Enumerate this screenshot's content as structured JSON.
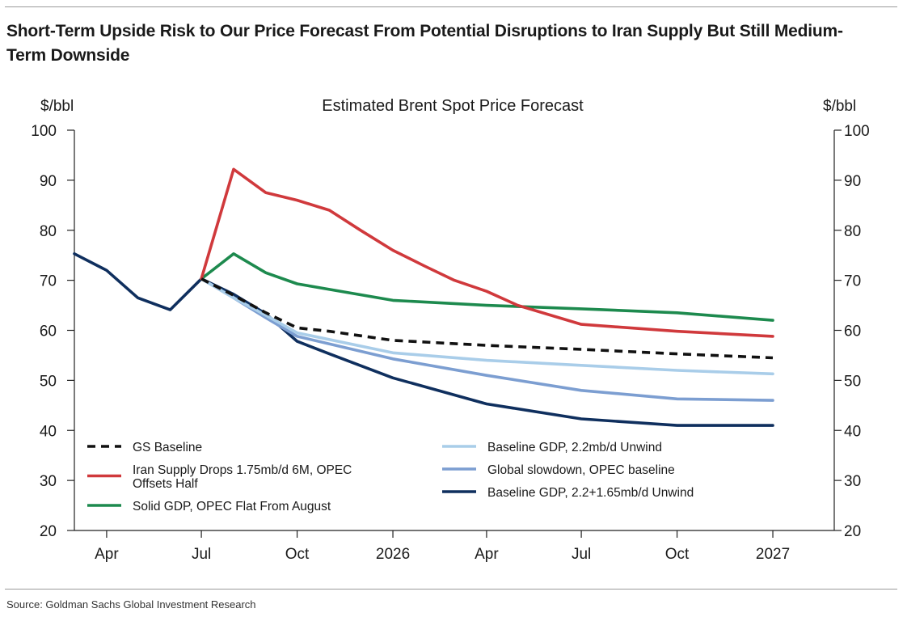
{
  "headline": "Short-Term Upside Risk to Our Price Forecast From Potential Disruptions to Iran Supply But Still Medium-Term Downside",
  "source": "Source: Goldman Sachs Global Investment Research",
  "chart_data": {
    "type": "line",
    "title": "Estimated Brent Spot Price Forecast",
    "ylabel_left": "$/bbl",
    "ylabel_right": "$/bbl",
    "ylim": [
      20,
      100
    ],
    "yticks": [
      20,
      30,
      40,
      50,
      60,
      70,
      80,
      90,
      100
    ],
    "xlim": [
      "2025-03-01",
      "2027-03-01"
    ],
    "xticks": [
      {
        "date": "2025-04-01",
        "label": "Apr"
      },
      {
        "date": "2025-07-01",
        "label": "Jul"
      },
      {
        "date": "2025-10-01",
        "label": "Oct"
      },
      {
        "date": "2026-01-01",
        "label": "2026"
      },
      {
        "date": "2026-04-01",
        "label": "Apr"
      },
      {
        "date": "2026-07-01",
        "label": "Jul"
      },
      {
        "date": "2026-10-01",
        "label": "Oct"
      },
      {
        "date": "2027-01-01",
        "label": "2027"
      }
    ],
    "grid": false,
    "series": [
      {
        "name": "GS Baseline",
        "color": "#111111",
        "dash": true,
        "x": [
          "2025-07-01",
          "2025-08-01",
          "2025-09-01",
          "2025-10-01",
          "2025-11-01",
          "2026-01-01",
          "2026-04-01",
          "2026-07-01",
          "2026-10-01",
          "2027-01-01"
        ],
        "y": [
          70.3,
          67,
          63.5,
          60.5,
          59.8,
          58,
          57,
          56.2,
          55.3,
          54.5
        ]
      },
      {
        "name": "Iran Supply Drops 1.75mb/d 6M, OPEC Offsets Half",
        "color": "#d0393c",
        "x": [
          "2025-07-01",
          "2025-08-01",
          "2025-09-01",
          "2025-10-01",
          "2025-11-01",
          "2025-12-01",
          "2026-01-01",
          "2026-02-01",
          "2026-03-01",
          "2026-04-01",
          "2026-05-01",
          "2026-07-01",
          "2026-10-01",
          "2027-01-01"
        ],
        "y": [
          70.3,
          92.2,
          87.5,
          86,
          84,
          80,
          76,
          72.8,
          70,
          67.8,
          65,
          61.2,
          59.8,
          58.8
        ]
      },
      {
        "name": "Solid GDP, OPEC Flat From August",
        "color": "#1d8a4e",
        "x": [
          "2025-07-01",
          "2025-08-01",
          "2025-09-01",
          "2025-10-01",
          "2026-01-01",
          "2026-04-01",
          "2026-07-01",
          "2026-10-01",
          "2027-01-01"
        ],
        "y": [
          70.3,
          75.3,
          71.5,
          69.3,
          66,
          65,
          64.3,
          63.5,
          62
        ]
      },
      {
        "name": "Baseline GDP, 2.2mb/d Unwind",
        "color": "#a9cde9",
        "x": [
          "2025-07-01",
          "2025-08-01",
          "2025-09-01",
          "2025-10-01",
          "2026-01-01",
          "2026-04-01",
          "2026-07-01",
          "2026-10-01",
          "2027-01-01"
        ],
        "y": [
          70.3,
          66.5,
          63,
          59.5,
          55.5,
          54,
          53,
          52,
          51.3
        ]
      },
      {
        "name": "Global slowdown, OPEC baseline",
        "color": "#7c9ed1",
        "x": [
          "2025-07-01",
          "2025-08-01",
          "2025-09-01",
          "2025-10-01",
          "2026-01-01",
          "2026-04-01",
          "2026-07-01",
          "2026-10-01",
          "2027-01-01"
        ],
        "y": [
          70.3,
          66.5,
          62.5,
          58.8,
          54.3,
          51,
          48,
          46.3,
          46
        ]
      },
      {
        "name": "Baseline GDP, 2.2+1.65mb/d Unwind",
        "color": "#0f2f5e",
        "x": [
          "2025-03-01",
          "2025-04-01",
          "2025-05-01",
          "2025-06-01",
          "2025-07-01",
          "2025-08-01",
          "2025-09-01",
          "2025-10-01",
          "2025-11-01",
          "2026-01-01",
          "2026-04-01",
          "2026-07-01",
          "2026-10-01",
          "2027-01-01"
        ],
        "y": [
          75.3,
          72,
          66.5,
          64.1,
          70.3,
          67.2,
          63.3,
          57.8,
          55.3,
          50.5,
          45.3,
          42.3,
          41,
          41
        ]
      }
    ],
    "legend": {
      "left": [
        [
          "GS Baseline"
        ],
        [
          "Iran Supply Drops 1.75mb/d 6M, OPEC",
          "Offsets Half"
        ],
        [
          "Solid GDP, OPEC Flat From August"
        ]
      ],
      "right": [
        [
          "Baseline GDP, 2.2mb/d Unwind"
        ],
        [
          "Global slowdown, OPEC baseline"
        ],
        [
          "Baseline GDP, 2.2+1.65mb/d Unwind"
        ]
      ]
    }
  }
}
